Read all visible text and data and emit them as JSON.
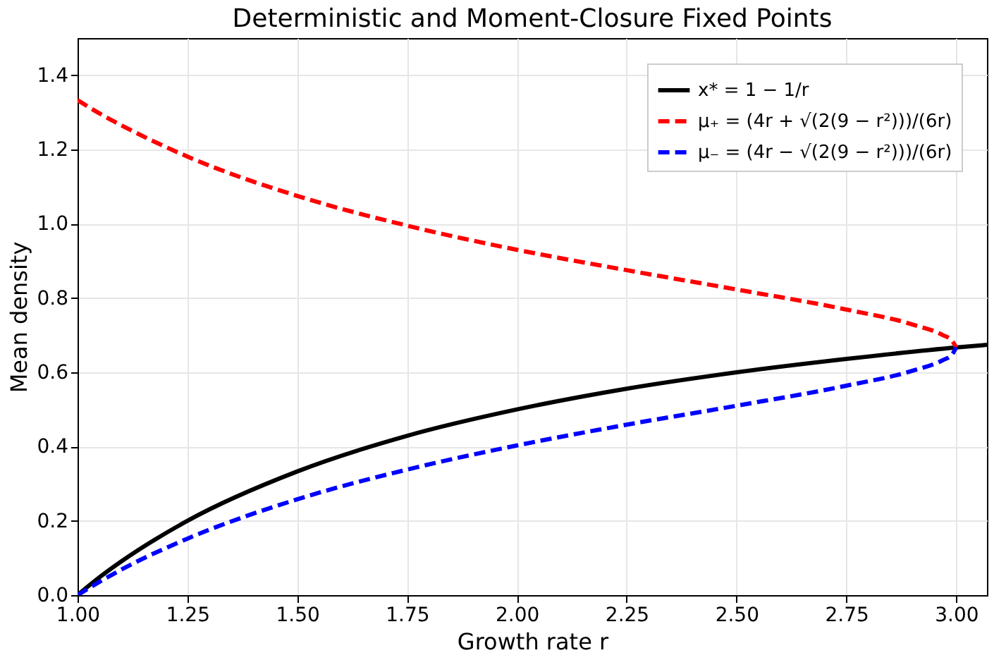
{
  "chart_data": {
    "type": "line",
    "title": "Deterministic and Moment-Closure Fixed Points",
    "xlabel": "Growth rate r",
    "ylabel": "Mean density",
    "xlim": [
      1.0,
      3.07
    ],
    "xticks": [
      {
        "value": 1.0,
        "label": "1.00"
      },
      1.25,
      {
        "value": 1.5,
        "label": "1.50"
      },
      1.75,
      {
        "value": 2.0,
        "label": "2.00"
      },
      2.25,
      {
        "value": 2.5,
        "label": "2.50"
      },
      2.75,
      {
        "value": 3.0,
        "label": "3.00"
      }
    ],
    "ylim": [
      0,
      1.5
    ],
    "yticks": [
      {
        "value": 0,
        "label": "0.0"
      },
      0.2,
      0.4,
      0.6,
      0.8,
      {
        "value": 1.0,
        "label": "1.0"
      },
      1.2,
      1.4
    ],
    "grid": true,
    "legend": "top right",
    "marker": "none",
    "series": [
      {
        "name": "x* = 1 − 1/r",
        "color": "#000000",
        "line_style": "solid",
        "x": [
          1.0,
          1.05,
          1.1,
          1.25,
          1.5,
          1.75,
          2.0,
          2.25,
          2.5,
          2.75,
          3.0,
          3.07
        ],
        "values": [
          0.0,
          0.048,
          0.091,
          0.2,
          0.333,
          0.429,
          0.5,
          0.556,
          0.6,
          0.636,
          0.667,
          0.674
        ]
      },
      {
        "name": "μ₊ = (4r + √(2(9 − r²)))/(6r)",
        "color": "#ff0000",
        "line_style": "dashed",
        "x": [
          1.0,
          1.05,
          1.1,
          1.25,
          1.5,
          1.75,
          2.0,
          2.25,
          2.5,
          2.75,
          2.9,
          2.97,
          2.99,
          3.0
        ],
        "values": [
          1.333,
          1.297,
          1.265,
          1.181,
          1.075,
          0.995,
          0.93,
          0.875,
          0.823,
          0.769,
          0.729,
          0.7,
          0.686,
          0.667
        ]
      },
      {
        "name": "μ₋ = (4r − √(2(9 − r²)))/(6r)",
        "color": "#0000ff",
        "line_style": "dashed",
        "x": [
          1.0,
          1.05,
          1.1,
          1.25,
          1.5,
          1.75,
          2.0,
          2.25,
          2.5,
          2.75,
          2.9,
          2.97,
          2.99,
          3.0
        ],
        "values": [
          0.0,
          0.036,
          0.069,
          0.152,
          0.258,
          0.338,
          0.403,
          0.459,
          0.51,
          0.564,
          0.604,
          0.633,
          0.647,
          0.667
        ]
      }
    ]
  }
}
